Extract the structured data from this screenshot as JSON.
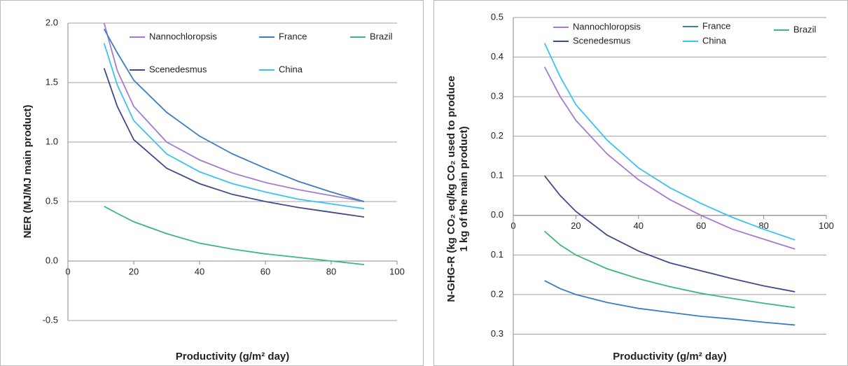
{
  "chart_data": [
    {
      "type": "line",
      "xlabel": "Productivity (g/m² day)",
      "ylabel": [
        "NER (MJ/MJ main product)"
      ],
      "xlim": [
        0,
        100
      ],
      "xticks": [
        0,
        20,
        40,
        60,
        80,
        100
      ],
      "ylim": [
        -0.5,
        2.0
      ],
      "yticks": [
        -0.5,
        {
          "value": 0,
          "label": "0.0"
        },
        0.5,
        {
          "value": 1,
          "label": "1.0"
        },
        1.5,
        {
          "value": 2,
          "label": "2.0"
        }
      ],
      "grid": true,
      "legend": "top",
      "x": [
        11,
        15,
        20,
        30,
        40,
        50,
        60,
        70,
        80,
        90
      ],
      "series": [
        {
          "name": "Nannochloropsis",
          "color": "#a57ad0",
          "values": [
            2.0,
            1.6,
            1.3,
            1.0,
            0.85,
            0.74,
            0.66,
            0.6,
            0.55,
            0.5
          ]
        },
        {
          "name": "France",
          "color": "#3b7cc4",
          "values": [
            1.95,
            1.75,
            1.52,
            1.25,
            1.05,
            0.9,
            0.78,
            0.67,
            0.58,
            0.5
          ]
        },
        {
          "name": "Brazil",
          "color": "#3cb878",
          "values": [
            0.46,
            0.4,
            0.33,
            0.23,
            0.15,
            0.1,
            0.06,
            0.03,
            0.0,
            -0.03
          ]
        },
        {
          "name": "Scenedesmus",
          "color": "#3d4a8c",
          "values": [
            1.62,
            1.3,
            1.02,
            0.78,
            0.65,
            0.56,
            0.5,
            0.45,
            0.41,
            0.37
          ]
        },
        {
          "name": "China",
          "color": "#38c4f0",
          "values": [
            1.83,
            1.48,
            1.18,
            0.9,
            0.75,
            0.65,
            0.58,
            0.52,
            0.48,
            0.44
          ]
        }
      ]
    },
    {
      "type": "line",
      "xlabel": "Productivity (g/m² day)",
      "ylabel": [
        "N-GHG-R (kg CO₂ eq/kg CO₂ used to produce",
        "1 kg of the main product)"
      ],
      "xlim": [
        0,
        100
      ],
      "xticks": [
        0,
        20,
        40,
        60,
        80,
        100
      ],
      "ylim": [
        -0.4,
        0.5
      ],
      "yticks": [
        -0.4,
        {
          "value": -0.3,
          "label": "0.3"
        },
        {
          "value": -0.2,
          "label": "0.2"
        },
        {
          "value": -0.1,
          "label": "0.1"
        },
        {
          "value": 0,
          "label": "0.0"
        },
        0.1,
        0.2,
        0.3,
        0.4,
        0.5
      ],
      "grid": true,
      "legend": "top",
      "x": [
        10,
        15,
        20,
        30,
        40,
        50,
        60,
        70,
        80,
        90
      ],
      "series": [
        {
          "name": "Nannochloropsis",
          "color": "#a57ad0",
          "values": [
            0.375,
            0.3,
            0.24,
            0.155,
            0.09,
            0.04,
            0.0,
            -0.035,
            -0.06,
            -0.085
          ]
        },
        {
          "name": "France",
          "color": "#3b7cc4",
          "values": [
            -0.165,
            -0.185,
            -0.2,
            -0.22,
            -0.235,
            -0.245,
            -0.255,
            -0.262,
            -0.27,
            -0.277
          ]
        },
        {
          "name": "Brazil",
          "color": "#3cb878",
          "values": [
            -0.04,
            -0.075,
            -0.1,
            -0.135,
            -0.16,
            -0.18,
            -0.197,
            -0.21,
            -0.222,
            -0.233
          ]
        },
        {
          "name": "Scenedesmus",
          "color": "#3d4a8c",
          "values": [
            0.1,
            0.05,
            0.01,
            -0.05,
            -0.09,
            -0.12,
            -0.14,
            -0.16,
            -0.178,
            -0.193
          ]
        },
        {
          "name": "China",
          "color": "#38c4f0",
          "values": [
            0.435,
            0.35,
            0.28,
            0.19,
            0.12,
            0.07,
            0.03,
            -0.005,
            -0.035,
            -0.062
          ]
        }
      ]
    }
  ]
}
